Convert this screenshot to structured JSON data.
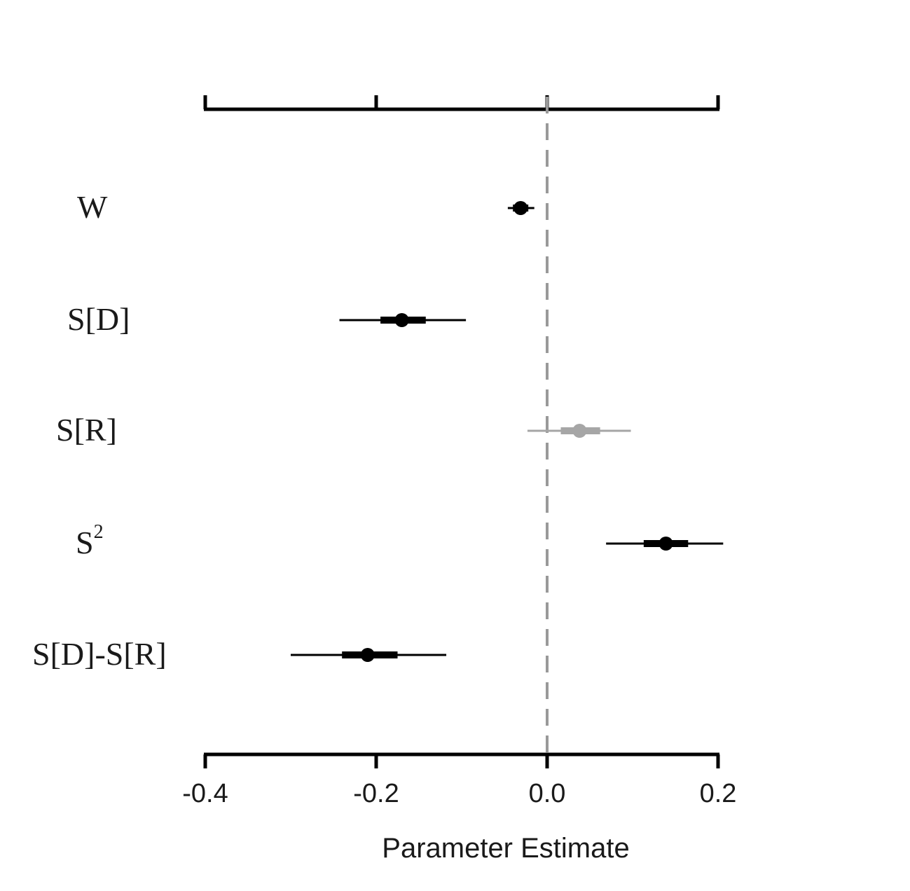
{
  "chart_data": {
    "type": "forest",
    "title": "",
    "xlabel": "Parameter Estimate",
    "ylabel": "",
    "xlim": [
      -0.4,
      0.2
    ],
    "xticks": [
      -0.4,
      -0.2,
      0.0,
      0.2
    ],
    "xtick_labels": [
      "-0.4",
      "-0.2",
      "0.0",
      "0.2"
    ],
    "reference_line": 0.0,
    "grid": false,
    "colors": {
      "significant": "#000000",
      "nonsignificant": "#a6a6a6",
      "reference": "#999999"
    },
    "rows": [
      {
        "label": "W",
        "sup": "",
        "estimate": -0.031,
        "inner": [
          -0.04,
          -0.022
        ],
        "outer": [
          -0.046,
          -0.015
        ],
        "color": "#000000"
      },
      {
        "label": "S[D]",
        "sup": "",
        "estimate": -0.17,
        "inner": [
          -0.195,
          -0.142
        ],
        "outer": [
          -0.243,
          -0.095
        ],
        "color": "#000000"
      },
      {
        "label": "S[R]",
        "sup": "",
        "estimate": 0.038,
        "inner": [
          0.016,
          0.062
        ],
        "outer": [
          -0.023,
          0.098
        ],
        "color": "#a6a6a6"
      },
      {
        "label": "S",
        "sup": "2",
        "estimate": 0.139,
        "inner": [
          0.113,
          0.165
        ],
        "outer": [
          0.069,
          0.206
        ],
        "color": "#000000"
      },
      {
        "label": "S[D]-S[R]",
        "sup": "",
        "estimate": -0.21,
        "inner": [
          -0.24,
          -0.175
        ],
        "outer": [
          -0.3,
          -0.118
        ],
        "color": "#000000"
      }
    ]
  }
}
